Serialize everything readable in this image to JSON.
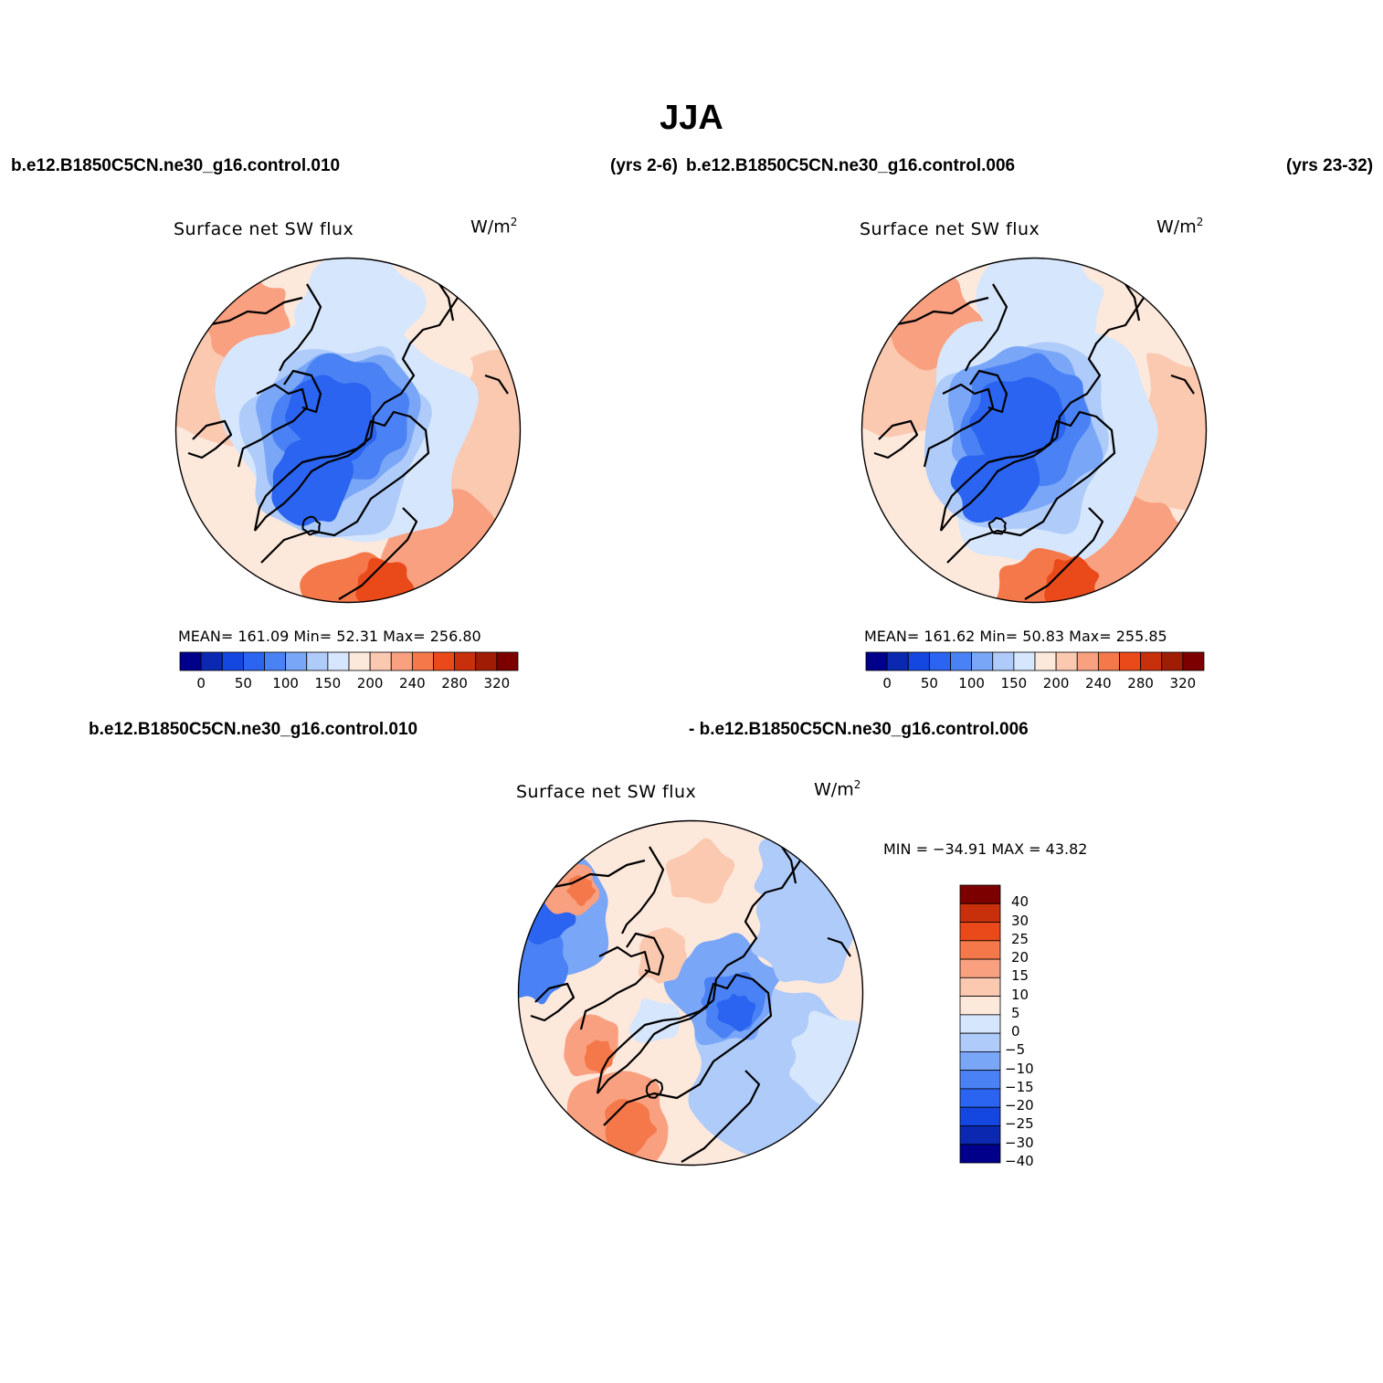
{
  "figure": {
    "title": "JJA",
    "case_top_left": "b.e12.B1850C5CN.ne30_g16.control.010",
    "years_left": "(yrs 2-6)",
    "case_top_right": "b.e12.B1850C5CN.ne30_g16.control.006",
    "years_right": "(yrs 23-32)",
    "diff_case_a": "b.e12.B1850C5CN.ne30_g16.control.010",
    "diff_case_b": "- b.e12.B1850C5CN.ne30_g16.control.006"
  },
  "panels": [
    {
      "title": "Surface net SW flux",
      "unit": "W/m",
      "unit_exp": "2",
      "stats": "MEAN= 161.09   Min=   52.31   Max= 256.80"
    },
    {
      "title": "Surface net SW flux",
      "unit": "W/m",
      "unit_exp": "2",
      "stats": "MEAN= 161.62   Min=   50.83   Max= 255.85"
    },
    {
      "title": "Surface net SW flux",
      "unit": "W/m",
      "unit_exp": "2",
      "stats": "MIN = −34.91  MAX =   43.82"
    }
  ],
  "colors": {
    "abs_scale": [
      "#00008b",
      "#0a28b0",
      "#1446e0",
      "#2a64f0",
      "#4a82f5",
      "#7aa6f7",
      "#aecbfa",
      "#d6e6fc",
      "#fde8dc",
      "#fbc8b0",
      "#f9a080",
      "#f5784a",
      "#ea4a1a",
      "#c8300c",
      "#a01c04",
      "#7c0000"
    ],
    "diff_scale": [
      "#00008b",
      "#0a28b0",
      "#1446e0",
      "#2a64f0",
      "#4a82f5",
      "#7aa6f7",
      "#aecbfa",
      "#d6e6fc",
      "#fde8dc",
      "#fbc8b0",
      "#f9a080",
      "#f5784a",
      "#ea4a1a",
      "#c8300c",
      "#7c0000"
    ],
    "coast": "#000000"
  },
  "chart_data": [
    {
      "type": "heatmap",
      "projection": "polar stereographic (north)",
      "title": "Surface net SW flux",
      "units": "W/m2",
      "stats": {
        "mean": 161.09,
        "min": 52.31,
        "max": 256.8
      },
      "colorbar": {
        "levels": [
          0,
          50,
          100,
          150,
          200,
          240,
          280,
          320
        ],
        "tick_labels": [
          "0",
          "50",
          "100",
          "150",
          "200",
          "240",
          "280",
          "320"
        ]
      }
    },
    {
      "type": "heatmap",
      "projection": "polar stereographic (north)",
      "title": "Surface net SW flux",
      "units": "W/m2",
      "stats": {
        "mean": 161.62,
        "min": 50.83,
        "max": 255.85
      },
      "colorbar": {
        "levels": [
          0,
          50,
          100,
          150,
          200,
          240,
          280,
          320
        ],
        "tick_labels": [
          "0",
          "50",
          "100",
          "150",
          "200",
          "240",
          "280",
          "320"
        ]
      }
    },
    {
      "type": "heatmap",
      "projection": "polar stereographic (north)",
      "title": "Surface net SW flux",
      "units": "W/m2",
      "stats": {
        "min": -34.91,
        "max": 43.82
      },
      "colorbar": {
        "orientation": "vertical",
        "tick_labels": [
          "40",
          "30",
          "25",
          "20",
          "15",
          "10",
          "5",
          "0",
          "−5",
          "−10",
          "−15",
          "−20",
          "−25",
          "−30",
          "−40"
        ]
      }
    }
  ]
}
